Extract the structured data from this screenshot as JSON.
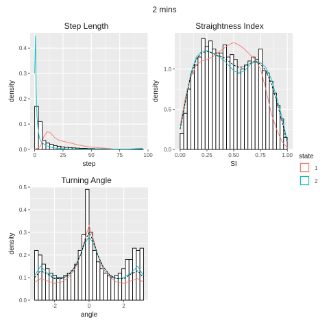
{
  "figure_title": "2 mins",
  "legend": {
    "title": "state",
    "placement": "right",
    "entries": [
      {
        "label": "1",
        "color": "#F8766D"
      },
      {
        "label": "2",
        "color": "#00BFC4"
      }
    ]
  },
  "colors": {
    "panel_bg": "#EBEBEB",
    "grid": "#FFFFFF",
    "bar_fill": "#FFFFFF",
    "bar_stroke": "#000000",
    "state1": "#F8766D",
    "state2": "#00BFC4",
    "overall": "#000000"
  },
  "chart_data": [
    {
      "type": "bar",
      "title": "Step Length",
      "xlabel": "step",
      "ylabel": "density",
      "xlim": [
        -4,
        100
      ],
      "ylim": [
        0,
        0.46
      ],
      "xticks": [
        0,
        25,
        50,
        75,
        100
      ],
      "xtick_labels": [
        "0",
        "25",
        "50",
        "75",
        "100"
      ],
      "yticks": [
        0,
        0.1,
        0.2,
        0.3,
        0.4
      ],
      "ytick_labels": [
        "0.0",
        "0.1",
        "0.2",
        "0.3",
        "0.4"
      ],
      "grid": true,
      "histogram": {
        "bin_width": 3.3,
        "bin_start": 0,
        "values": [
          0.17,
          0.11,
          0.035,
          0.025,
          0.02,
          0.015,
          0.012,
          0.01,
          0.008,
          0.007,
          0.006,
          0.005,
          0.004,
          0.004,
          0.003,
          0.003,
          0.002,
          0.002,
          0.002,
          0.001,
          0.001,
          0.001,
          0.001,
          0.001,
          0.001,
          0.001,
          0.001,
          0.001,
          0.001
        ]
      },
      "series": [
        {
          "name": "1",
          "x": [
            0,
            5,
            8,
            11,
            14,
            18,
            22,
            27,
            32,
            38,
            45,
            55,
            65,
            72
          ],
          "y": [
            0,
            0.01,
            0.05,
            0.07,
            0.065,
            0.045,
            0.035,
            0.03,
            0.025,
            0.018,
            0.012,
            0.007,
            0.004,
            0
          ]
        },
        {
          "name": "2",
          "x": [
            0,
            0.7,
            1.3,
            2,
            3,
            4,
            5,
            7,
            10,
            15,
            20,
            30,
            45,
            60,
            80,
            95
          ],
          "y": [
            0.3,
            0.45,
            0.25,
            0.13,
            0.08,
            0.05,
            0.035,
            0.025,
            0.015,
            0.008,
            0.004,
            0.002,
            0.001,
            0.001,
            0.0005,
            0.004
          ]
        }
      ]
    },
    {
      "type": "bar",
      "title": "Straightness Index",
      "xlabel": "SI",
      "ylabel": "density",
      "xlim": [
        -0.05,
        1.05
      ],
      "ylim": [
        0,
        1.45
      ],
      "xticks": [
        0,
        0.25,
        0.5,
        0.75,
        1
      ],
      "xtick_labels": [
        "0.00",
        "0.25",
        "0.50",
        "0.75",
        "1.00"
      ],
      "yticks": [
        0,
        0.5,
        1,
        1.5
      ],
      "ytick_labels": [
        "0.0",
        "0.5",
        "1.0",
        "1.5"
      ],
      "grid": true,
      "histogram": {
        "bin_width": 0.0333,
        "bin_start": 0,
        "values": [
          0.2,
          0.45,
          0.75,
          0.95,
          1.05,
          1.15,
          1.38,
          1.28,
          1.35,
          1.25,
          1.2,
          1.2,
          1.3,
          1.15,
          1.18,
          1.12,
          0.95,
          1.0,
          1.05,
          1.1,
          1.15,
          1.12,
          1.25,
          0.98,
          0.95,
          0.85,
          0.7,
          0.55,
          0.38,
          0.15
        ]
      },
      "series": [
        {
          "name": "1",
          "x": [
            0,
            0.05,
            0.1,
            0.15,
            0.2,
            0.25,
            0.3,
            0.35,
            0.4,
            0.45,
            0.5,
            0.55,
            0.6,
            0.65,
            0.7,
            0.75,
            0.8,
            0.85,
            0.9,
            0.95,
            1.0
          ],
          "y": [
            0.3,
            0.65,
            0.9,
            1.05,
            1.1,
            1.12,
            1.15,
            1.2,
            1.25,
            1.3,
            1.33,
            1.3,
            1.25,
            1.18,
            1.12,
            1.0,
            0.75,
            0.45,
            0.25,
            0.1,
            0.02
          ]
        },
        {
          "name": "2",
          "x": [
            0,
            0.05,
            0.1,
            0.15,
            0.2,
            0.25,
            0.3,
            0.35,
            0.4,
            0.45,
            0.5,
            0.55,
            0.6,
            0.65,
            0.7,
            0.75,
            0.8,
            0.85,
            0.9,
            0.95,
            1.0
          ],
          "y": [
            0.25,
            0.6,
            0.95,
            1.15,
            1.22,
            1.23,
            1.2,
            1.16,
            1.12,
            1.05,
            0.98,
            0.95,
            0.98,
            1.05,
            1.1,
            1.08,
            1.02,
            0.88,
            0.65,
            0.4,
            0.1
          ]
        },
        {
          "name": "overall",
          "x": [
            0,
            0.05,
            0.1,
            0.15,
            0.2,
            0.25,
            0.3,
            0.35,
            0.4,
            0.45,
            0.5,
            0.55,
            0.6,
            0.65,
            0.7,
            0.75,
            0.8,
            0.85,
            0.9,
            0.95,
            1.0
          ],
          "y": [
            0.25,
            0.6,
            0.93,
            1.12,
            1.2,
            1.22,
            1.2,
            1.17,
            1.15,
            1.1,
            1.05,
            1.02,
            1.03,
            1.07,
            1.1,
            1.06,
            0.98,
            0.82,
            0.6,
            0.35,
            0.08
          ]
        }
      ]
    },
    {
      "type": "bar",
      "title": "Turning Angle",
      "xlabel": "angle",
      "ylabel": "density",
      "xlim": [
        -3.4,
        3.4
      ],
      "ylim": [
        0,
        0.5
      ],
      "xticks": [
        -2,
        0,
        2
      ],
      "xtick_labels": [
        "-2",
        "0",
        "2"
      ],
      "yticks": [
        0,
        0.1,
        0.2,
        0.3,
        0.4,
        0.5
      ],
      "ytick_labels": [
        "0.0",
        "0.1",
        "0.2",
        "0.3",
        "0.4",
        "0.5"
      ],
      "grid": true,
      "histogram": {
        "bin_width": 0.2094,
        "bin_start": -3.1416,
        "values": [
          0.22,
          0.2,
          0.16,
          0.14,
          0.12,
          0.11,
          0.1,
          0.1,
          0.11,
          0.12,
          0.13,
          0.16,
          0.22,
          0.29,
          0.49,
          0.3,
          0.22,
          0.17,
          0.14,
          0.12,
          0.11,
          0.1,
          0.11,
          0.12,
          0.14,
          0.18,
          0.18,
          0.23,
          0.22,
          0.23
        ]
      },
      "series": [
        {
          "name": "1",
          "x": [
            -3.14,
            -2.8,
            -2.4,
            -2.0,
            -1.6,
            -1.2,
            -0.8,
            -0.5,
            -0.25,
            0,
            0.25,
            0.5,
            0.8,
            1.2,
            1.6,
            2.0,
            2.4,
            2.8,
            3.14
          ],
          "y": [
            0.08,
            0.095,
            0.085,
            0.075,
            0.08,
            0.1,
            0.14,
            0.2,
            0.27,
            0.33,
            0.27,
            0.2,
            0.14,
            0.1,
            0.08,
            0.075,
            0.085,
            0.095,
            0.08
          ]
        },
        {
          "name": "2",
          "x": [
            -3.14,
            -2.8,
            -2.4,
            -2.0,
            -1.6,
            -1.2,
            -0.8,
            -0.5,
            -0.25,
            0,
            0.25,
            0.5,
            0.8,
            1.2,
            1.6,
            2.0,
            2.4,
            2.8,
            3.14
          ],
          "y": [
            0.11,
            0.15,
            0.12,
            0.1,
            0.095,
            0.11,
            0.15,
            0.2,
            0.25,
            0.28,
            0.25,
            0.2,
            0.15,
            0.11,
            0.095,
            0.1,
            0.12,
            0.15,
            0.11
          ]
        },
        {
          "name": "overall",
          "x": [
            -3.14,
            -2.8,
            -2.4,
            -2.0,
            -1.6,
            -1.2,
            -0.8,
            -0.5,
            -0.25,
            0,
            0.25,
            0.5,
            0.8,
            1.2,
            1.6,
            2.0,
            2.4,
            2.8,
            3.14
          ],
          "y": [
            0.1,
            0.13,
            0.115,
            0.095,
            0.095,
            0.11,
            0.15,
            0.2,
            0.26,
            0.3,
            0.26,
            0.2,
            0.15,
            0.11,
            0.095,
            0.095,
            0.115,
            0.13,
            0.1
          ]
        }
      ]
    }
  ]
}
